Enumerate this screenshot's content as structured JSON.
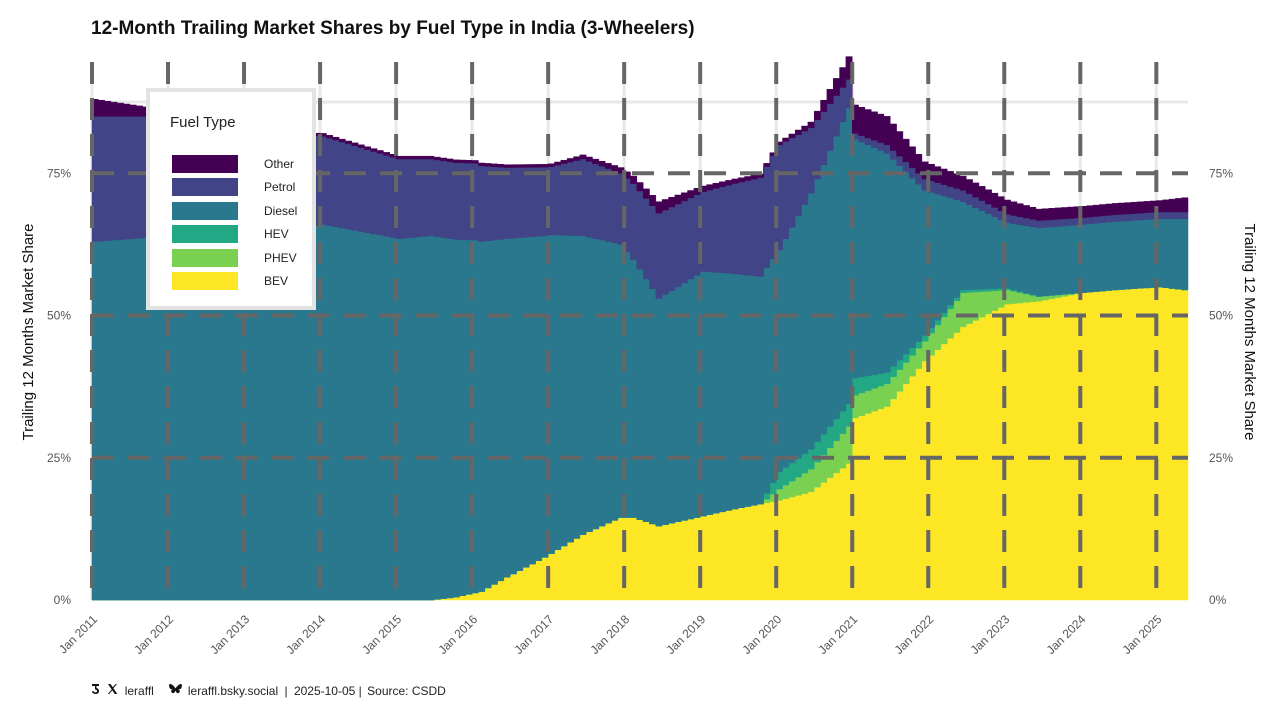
{
  "chart_title": "12-Month Trailing Market Shares by Fuel Type in India (3-Wheelers)",
  "y_axis_left_title": "Trailing 12 Months Market Share",
  "y_axis_right_title": "Trailing 12 Months Market Share",
  "footer": {
    "handle_x": "leraffl",
    "handle_bsky": "leraffl.bsky.social",
    "separator": "|",
    "date": "2025-10-05",
    "source": "Source: CSDD"
  },
  "colors": {
    "Other": "#440154",
    "Petrol": "#414487",
    "Diesel": "#2a788e",
    "HEV": "#22a884",
    "PHEV": "#7ad151",
    "BEV": "#fde725",
    "grid_dash": "#666666",
    "grid_light": "#e8e8e8"
  },
  "chart_data": {
    "type": "area",
    "stacked": true,
    "step": "monthly",
    "title": "12-Month Trailing Market Shares by Fuel Type in India (3-Wheelers)",
    "xlabel": "",
    "ylabel": "Trailing 12 Months Market Share",
    "x_range": [
      "2011-01",
      "2025-05"
    ],
    "ylim": [
      0,
      0.95
    ],
    "y_ticks": [
      0,
      0.25,
      0.5,
      0.75
    ],
    "y_tick_labels": [
      "0%",
      "25%",
      "50%",
      "75%"
    ],
    "x_ticks": [
      "2011-01",
      "2012-01",
      "2013-01",
      "2014-01",
      "2015-01",
      "2016-01",
      "2017-01",
      "2018-01",
      "2019-01",
      "2020-01",
      "2021-01",
      "2022-01",
      "2023-01",
      "2024-01",
      "2025-01"
    ],
    "x_tick_labels": [
      "Jan 2011",
      "Jan 2012",
      "Jan 2013",
      "Jan 2014",
      "Jan 2015",
      "Jan 2016",
      "Jan 2017",
      "Jan 2018",
      "Jan 2019",
      "Jan 2020",
      "Jan 2021",
      "Jan 2022",
      "Jan 2023",
      "Jan 2024",
      "Jan 2025"
    ],
    "legend": {
      "title": "Fuel Type",
      "position": "top-left",
      "entries": [
        "Other",
        "Petrol",
        "Diesel",
        "HEV",
        "PHEV",
        "BEV"
      ]
    },
    "stack_order_bottom_to_top": [
      "BEV",
      "PHEV",
      "HEV",
      "Diesel",
      "Petrol",
      "Other"
    ],
    "series": [
      {
        "name": "BEV",
        "points": [
          [
            "2011-01",
            0
          ],
          [
            "2015-06",
            0
          ],
          [
            "2015-10",
            0.005
          ],
          [
            "2016-02",
            0.015
          ],
          [
            "2016-06",
            0.04
          ],
          [
            "2016-12",
            0.075
          ],
          [
            "2017-06",
            0.115
          ],
          [
            "2017-12",
            0.145
          ],
          [
            "2018-02",
            0.145
          ],
          [
            "2018-06",
            0.13
          ],
          [
            "2018-10",
            0.14
          ],
          [
            "2019-06",
            0.16
          ],
          [
            "2020-01",
            0.175
          ],
          [
            "2020-06",
            0.19
          ],
          [
            "2020-12",
            0.24
          ],
          [
            "2021-01",
            0.32
          ],
          [
            "2021-06",
            0.34
          ],
          [
            "2021-12",
            0.42
          ],
          [
            "2022-06",
            0.48
          ],
          [
            "2023-01",
            0.52
          ],
          [
            "2023-06",
            0.525
          ],
          [
            "2024-01",
            0.54
          ],
          [
            "2024-06",
            0.545
          ],
          [
            "2025-01",
            0.55
          ],
          [
            "2025-05",
            0.545
          ]
        ]
      },
      {
        "name": "PHEV",
        "points": [
          [
            "2011-01",
            0
          ],
          [
            "2019-10",
            0
          ],
          [
            "2020-01",
            0.02
          ],
          [
            "2020-06",
            0.04
          ],
          [
            "2020-12",
            0.065
          ],
          [
            "2021-01",
            0.04
          ],
          [
            "2021-06",
            0.04
          ],
          [
            "2021-12",
            0.035
          ],
          [
            "2022-06",
            0.06
          ],
          [
            "2023-01",
            0.025
          ],
          [
            "2023-06",
            0.008
          ],
          [
            "2024-01",
            0
          ],
          [
            "2025-05",
            0
          ]
        ]
      },
      {
        "name": "HEV",
        "points": [
          [
            "2011-01",
            0
          ],
          [
            "2019-10",
            0
          ],
          [
            "2020-01",
            0.03
          ],
          [
            "2020-06",
            0.035
          ],
          [
            "2020-12",
            0.04
          ],
          [
            "2021-01",
            0.03
          ],
          [
            "2021-06",
            0.02
          ],
          [
            "2021-12",
            0.01
          ],
          [
            "2022-06",
            0.005
          ],
          [
            "2023-01",
            0.003
          ],
          [
            "2023-06",
            0.001
          ],
          [
            "2024-01",
            0
          ],
          [
            "2025-05",
            0
          ]
        ]
      },
      {
        "name": "Diesel",
        "points": [
          [
            "2011-01",
            0.63
          ],
          [
            "2012-01",
            0.64
          ],
          [
            "2013-01",
            0.64
          ],
          [
            "2014-01",
            0.66
          ],
          [
            "2015-01",
            0.635
          ],
          [
            "2015-06",
            0.64
          ],
          [
            "2016-01",
            0.62
          ],
          [
            "2016-06",
            0.595
          ],
          [
            "2017-01",
            0.56
          ],
          [
            "2017-06",
            0.525
          ],
          [
            "2017-12",
            0.48
          ],
          [
            "2018-06",
            0.4
          ],
          [
            "2019-01",
            0.43
          ],
          [
            "2020-01",
            0.39
          ],
          [
            "2020-06",
            0.45
          ],
          [
            "2020-12",
            0.52
          ],
          [
            "2021-01",
            0.42
          ],
          [
            "2021-06",
            0.385
          ],
          [
            "2021-12",
            0.255
          ],
          [
            "2022-06",
            0.155
          ],
          [
            "2023-01",
            0.115
          ],
          [
            "2023-06",
            0.12
          ],
          [
            "2024-01",
            0.12
          ],
          [
            "2025-01",
            0.12
          ],
          [
            "2025-05",
            0.125
          ]
        ]
      },
      {
        "name": "Petrol",
        "points": [
          [
            "2011-01",
            0.22
          ],
          [
            "2012-01",
            0.21
          ],
          [
            "2013-01",
            0.18
          ],
          [
            "2014-01",
            0.155
          ],
          [
            "2015-01",
            0.14
          ],
          [
            "2015-06",
            0.135
          ],
          [
            "2016-01",
            0.135
          ],
          [
            "2016-06",
            0.125
          ],
          [
            "2017-01",
            0.12
          ],
          [
            "2017-06",
            0.135
          ],
          [
            "2017-12",
            0.125
          ],
          [
            "2018-06",
            0.15
          ],
          [
            "2019-01",
            0.14
          ],
          [
            "2020-01",
            0.185
          ],
          [
            "2020-06",
            0.115
          ],
          [
            "2020-12",
            0.05
          ],
          [
            "2021-01",
            0.01
          ],
          [
            "2021-06",
            0.015
          ],
          [
            "2021-12",
            0.02
          ],
          [
            "2022-06",
            0.02
          ],
          [
            "2023-01",
            0.015
          ],
          [
            "2023-06",
            0.013
          ],
          [
            "2024-01",
            0.012
          ],
          [
            "2025-01",
            0.012
          ],
          [
            "2025-05",
            0.012
          ]
        ]
      },
      {
        "name": "Other",
        "points": [
          [
            "2011-01",
            0.03
          ],
          [
            "2012-01",
            0.01
          ],
          [
            "2013-01",
            0.005
          ],
          [
            "2014-01",
            0.005
          ],
          [
            "2015-01",
            0.005
          ],
          [
            "2016-01",
            0.005
          ],
          [
            "2017-01",
            0.005
          ],
          [
            "2017-12",
            0.01
          ],
          [
            "2018-06",
            0.02
          ],
          [
            "2019-01",
            0.01
          ],
          [
            "2020-01",
            0.005
          ],
          [
            "2020-06",
            0.01
          ],
          [
            "2020-12",
            0.04
          ],
          [
            "2021-01",
            0.05
          ],
          [
            "2021-06",
            0.05
          ],
          [
            "2021-12",
            0.03
          ],
          [
            "2022-06",
            0.025
          ],
          [
            "2023-01",
            0.025
          ],
          [
            "2023-06",
            0.02
          ],
          [
            "2024-01",
            0.02
          ],
          [
            "2025-01",
            0.02
          ],
          [
            "2025-05",
            0.025
          ]
        ]
      }
    ]
  }
}
